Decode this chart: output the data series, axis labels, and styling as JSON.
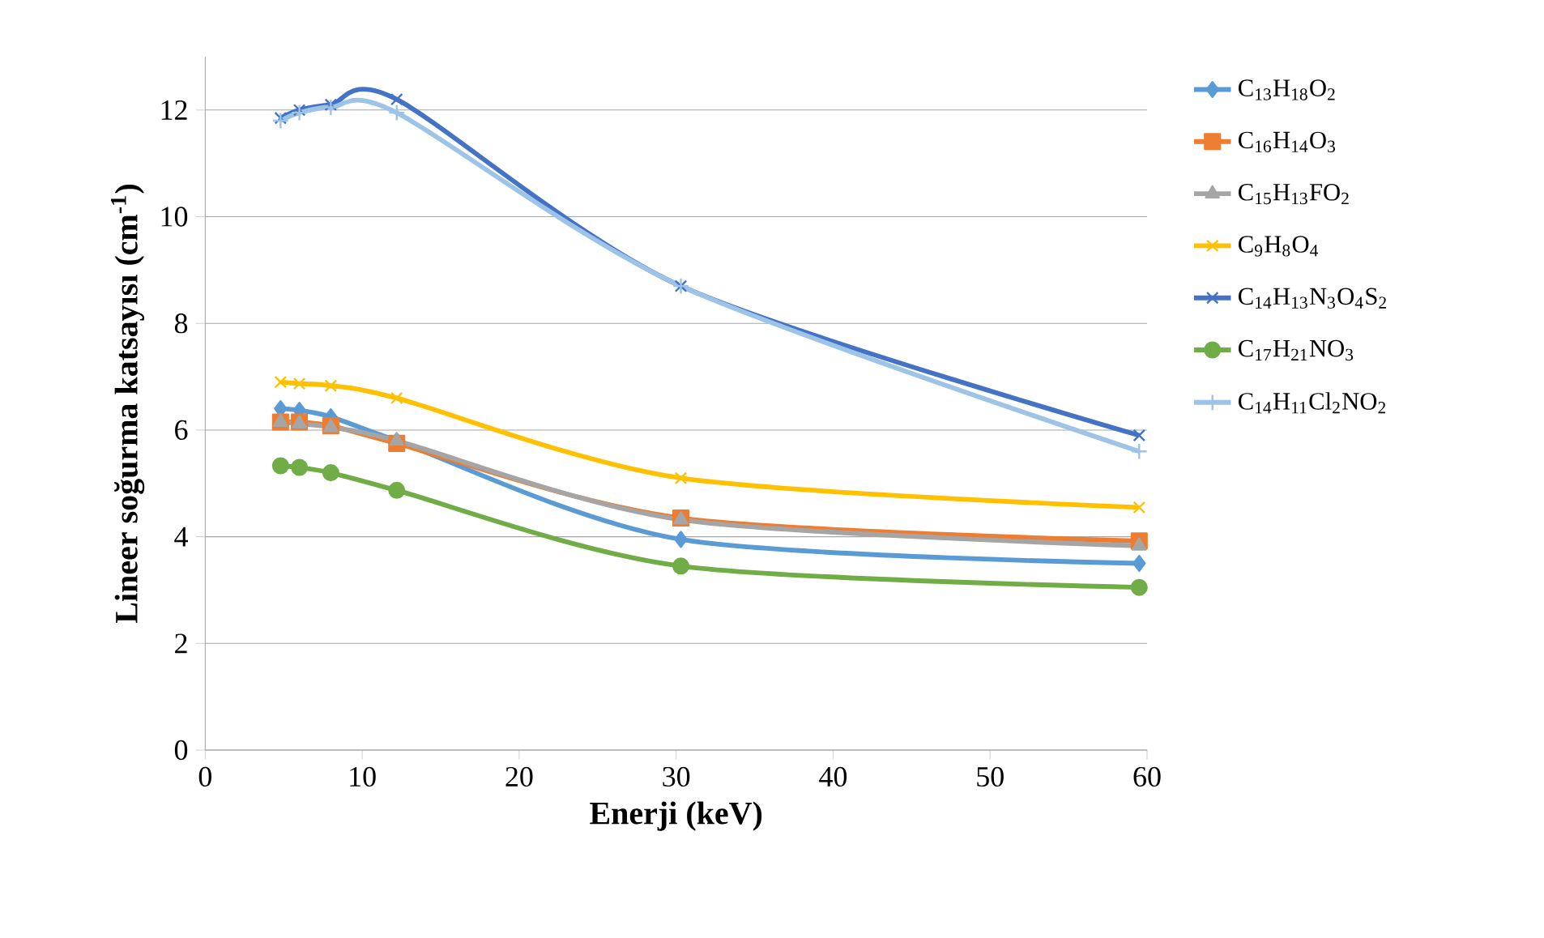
{
  "chart_data": {
    "type": "line",
    "xlabel": "Enerji (keV)",
    "ylabel": "Lineer soğurma katsayısı (cm$^{-1}$)",
    "x": [
      4.8,
      6,
      8,
      12.2,
      30.3,
      59.5
    ],
    "xlim": [
      0,
      60
    ],
    "xticks": [
      0,
      10,
      20,
      30,
      40,
      50,
      60
    ],
    "ylim": [
      0,
      13
    ],
    "yticks": [
      0,
      2,
      4,
      6,
      8,
      10,
      12
    ],
    "grid": "y",
    "legend": "right",
    "line_style": "solid",
    "series": [
      {
        "name": "C$_{13}$H$_{18}$O$_{2}$",
        "color": "#5b9bd5",
        "marker": "diamond",
        "values": [
          6.4,
          6.37,
          6.25,
          5.8,
          3.95,
          3.5
        ]
      },
      {
        "name": "C$_{16}$H$_{14}$O$_{3}$",
        "color": "#ed7d31",
        "marker": "square",
        "values": [
          6.15,
          6.15,
          6.08,
          5.75,
          4.35,
          3.92
        ]
      },
      {
        "name": "C$_{15}$H$_{13}$FO$_{2}$",
        "color": "#a5a5a5",
        "marker": "triangle",
        "values": [
          6.15,
          6.12,
          6.05,
          5.8,
          4.32,
          3.83
        ]
      },
      {
        "name": "C$_{9}$H$_{8}$O$_{4}$",
        "color": "#ffc000",
        "marker": "cross",
        "values": [
          6.9,
          6.87,
          6.83,
          6.6,
          5.1,
          4.55
        ]
      },
      {
        "name": "C$_{14}$H$_{13}$N$_{3}$O$_{4}$S$_{2}$",
        "color": "#4472c4",
        "marker": "cross",
        "values": [
          11.85,
          12.0,
          12.1,
          12.2,
          8.7,
          5.9
        ]
      },
      {
        "name": "C$_{17}$H$_{21}$NO$_{3}$",
        "color": "#70ad47",
        "marker": "circle",
        "values": [
          5.33,
          5.3,
          5.2,
          4.87,
          3.45,
          3.05
        ]
      },
      {
        "name": "C$_{14}$H$_{11}$Cl$_{2}$NO$_{2}$",
        "color": "#9dc3e6",
        "marker": "plus",
        "values": [
          11.8,
          11.95,
          12.05,
          11.95,
          8.7,
          5.6
        ]
      }
    ]
  }
}
